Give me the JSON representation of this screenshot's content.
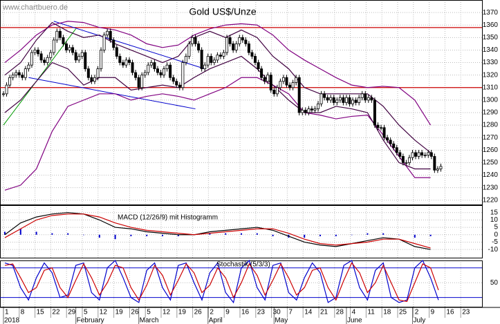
{
  "chart_data": {
    "type": "candlestick",
    "title": "Gold US$/Unze",
    "watermark": "www.chartbuero.de",
    "x_tick_labels": [
      "1",
      "8",
      "15",
      "22",
      "29",
      "5",
      "12",
      "19",
      "26",
      "5",
      "12",
      "19",
      "26",
      "2",
      "9",
      "16",
      "23",
      "30",
      "7",
      "14",
      "21",
      "28",
      "4",
      "11",
      "18",
      "25",
      "2",
      "9",
      "16",
      "23"
    ],
    "months": [
      "2018",
      "February",
      "March",
      "April",
      "May",
      "June",
      "July"
    ],
    "month_start_day": [
      0,
      23,
      43,
      65,
      86,
      109,
      130
    ],
    "close": [
      1305,
      1312,
      1318,
      1320,
      1322,
      1320,
      1318,
      1325,
      1328,
      1338,
      1340,
      1337,
      1332,
      1330,
      1334,
      1338,
      1348,
      1355,
      1350,
      1345,
      1340,
      1342,
      1338,
      1332,
      1335,
      1338,
      1325,
      1318,
      1315,
      1318,
      1325,
      1340,
      1352,
      1355,
      1348,
      1342,
      1335,
      1330,
      1328,
      1332,
      1330,
      1322,
      1318,
      1310,
      1320,
      1322,
      1328,
      1330,
      1325,
      1322,
      1320,
      1325,
      1328,
      1318,
      1315,
      1312,
      1310,
      1330,
      1335,
      1345,
      1350,
      1345,
      1340,
      1325,
      1328,
      1335,
      1330,
      1332,
      1336,
      1335,
      1338,
      1350,
      1345,
      1340,
      1345,
      1350,
      1348,
      1345,
      1338,
      1335,
      1330,
      1325,
      1318,
      1315,
      1320,
      1308,
      1305,
      1310,
      1315,
      1318,
      1312,
      1310,
      1314,
      1318,
      1290,
      1292,
      1290,
      1293,
      1292,
      1293,
      1297,
      1305,
      1302,
      1300,
      1302,
      1298,
      1300,
      1302,
      1298,
      1302,
      1297,
      1300,
      1298,
      1302,
      1305,
      1300,
      1302,
      1300,
      1280,
      1278,
      1278,
      1270,
      1268,
      1265,
      1262,
      1258,
      1255,
      1250,
      1250,
      1254,
      1258,
      1255,
      1258,
      1256,
      1256,
      1258,
      1255,
      1244,
      1245,
      1247
    ],
    "bands": [
      {
        "name": "upper",
        "color": "#800080",
        "values": [
          1330,
          1340,
          1352,
          1360,
          1363,
          1362,
          1358,
          1356,
          1352,
          1345,
          1342,
          1344,
          1352,
          1357,
          1360,
          1361,
          1360,
          1352,
          1340,
          1332,
          1325,
          1318,
          1312,
          1310,
          1311,
          1310,
          1300,
          1280
        ]
      },
      {
        "name": "lower",
        "color": "#800080",
        "values": [
          1228,
          1232,
          1245,
          1275,
          1295,
          1300,
          1305,
          1305,
          1300,
          1303,
          1305,
          1303,
          1300,
          1305,
          1310,
          1318,
          1318,
          1312,
          1305,
          1290,
          1288,
          1285,
          1287,
          1288,
          1272,
          1255,
          1238,
          1238
        ]
      },
      {
        "name": "upper2",
        "color": "#400040",
        "values": [
          1320,
          1330,
          1348,
          1362,
          1355,
          1350,
          1352,
          1345,
          1340,
          1335,
          1330,
          1335,
          1350,
          1355,
          1350,
          1356,
          1350,
          1335,
          1325,
          1310,
          1305,
          1305,
          1305,
          1305,
          1295,
          1280,
          1268,
          1258
        ]
      },
      {
        "name": "lower2",
        "color": "#400040",
        "values": [
          1290,
          1300,
          1315,
          1330,
          1325,
          1312,
          1318,
          1318,
          1308,
          1310,
          1312,
          1310,
          1318,
          1325,
          1330,
          1335,
          1325,
          1312,
          1300,
          1290,
          1290,
          1295,
          1293,
          1290,
          1268,
          1250,
          1245,
          1245
        ]
      }
    ],
    "hlines": [
      {
        "value": 1358,
        "color": "#cc0000"
      },
      {
        "value": 1310,
        "color": "#cc0000"
      }
    ],
    "trendlines": [
      {
        "color": "#0000cc",
        "day": [
          16,
          64
        ],
        "values": [
          1363,
          1325
        ]
      },
      {
        "color": "#0000cc",
        "day": [
          8,
          61
        ],
        "values": [
          1318,
          1293
        ]
      },
      {
        "color": "#009900",
        "day": [
          0,
          23
        ],
        "values": [
          1280,
          1357
        ]
      }
    ],
    "ylim": [
      1216,
      1380
    ],
    "yticks": [
      1220,
      1230,
      1240,
      1250,
      1260,
      1270,
      1280,
      1290,
      1300,
      1310,
      1320,
      1330,
      1340,
      1350,
      1360,
      1370
    ],
    "macd": {
      "title": "MACD (12/26/9) mit Histogramm",
      "ylim": [
        -16,
        20
      ],
      "yticks": [
        15,
        10,
        5,
        0,
        -5,
        -10
      ],
      "macd": {
        "color": "#000000",
        "values": [
          0,
          8,
          12,
          14,
          15,
          14,
          10,
          5,
          4,
          2,
          1,
          0,
          0,
          2,
          3,
          4,
          5,
          3,
          -1,
          -5,
          -7,
          -8,
          -6,
          -4,
          -2,
          -3,
          -8,
          -10
        ]
      },
      "signal": {
        "color": "#cc0000",
        "values": [
          -2,
          4,
          10,
          13,
          14,
          14,
          12,
          8,
          5,
          3,
          2,
          1,
          0,
          1,
          2,
          3,
          4,
          4,
          1,
          -3,
          -6,
          -7,
          -6,
          -5,
          -3,
          -3,
          -6,
          -9
        ]
      },
      "histogram": {
        "color": "#0000cc",
        "values": [
          2,
          4,
          2,
          1,
          1,
          0,
          -2,
          -3,
          -1,
          -1,
          -1,
          -1,
          0,
          1,
          1,
          1,
          1,
          -1,
          -2,
          -2,
          -1,
          -1,
          0,
          1,
          1,
          0,
          -2,
          -1
        ]
      }
    },
    "stochastic": {
      "title": "Stochastik (5/3/3)",
      "ylim": [
        0,
        95
      ],
      "yticks": [
        50
      ],
      "levels": [
        20,
        80
      ],
      "k": {
        "color": "#0000cc",
        "values": [
          90,
          85,
          40,
          15,
          60,
          90,
          70,
          20,
          25,
          85,
          90,
          30,
          15,
          80,
          95,
          60,
          20,
          10,
          75,
          90,
          40,
          15,
          85,
          90,
          50,
          15,
          70,
          90,
          30,
          10,
          80,
          95,
          40,
          15,
          85,
          90,
          30,
          15,
          60,
          90,
          70,
          10,
          20,
          85,
          95,
          40,
          15,
          75,
          90,
          20,
          10,
          15,
          80,
          95,
          60,
          15
        ]
      },
      "d": {
        "color": "#cc0000",
        "values": [
          85,
          88,
          60,
          30,
          40,
          75,
          80,
          40,
          20,
          55,
          88,
          60,
          25,
          50,
          85,
          80,
          40,
          15,
          45,
          85,
          65,
          25,
          55,
          88,
          70,
          30,
          45,
          80,
          60,
          20,
          50,
          88,
          65,
          25,
          55,
          88,
          60,
          25,
          40,
          75,
          80,
          40,
          15,
          55,
          90,
          70,
          30,
          50,
          85,
          50,
          15,
          12,
          50,
          88,
          80,
          35
        ]
      }
    }
  }
}
